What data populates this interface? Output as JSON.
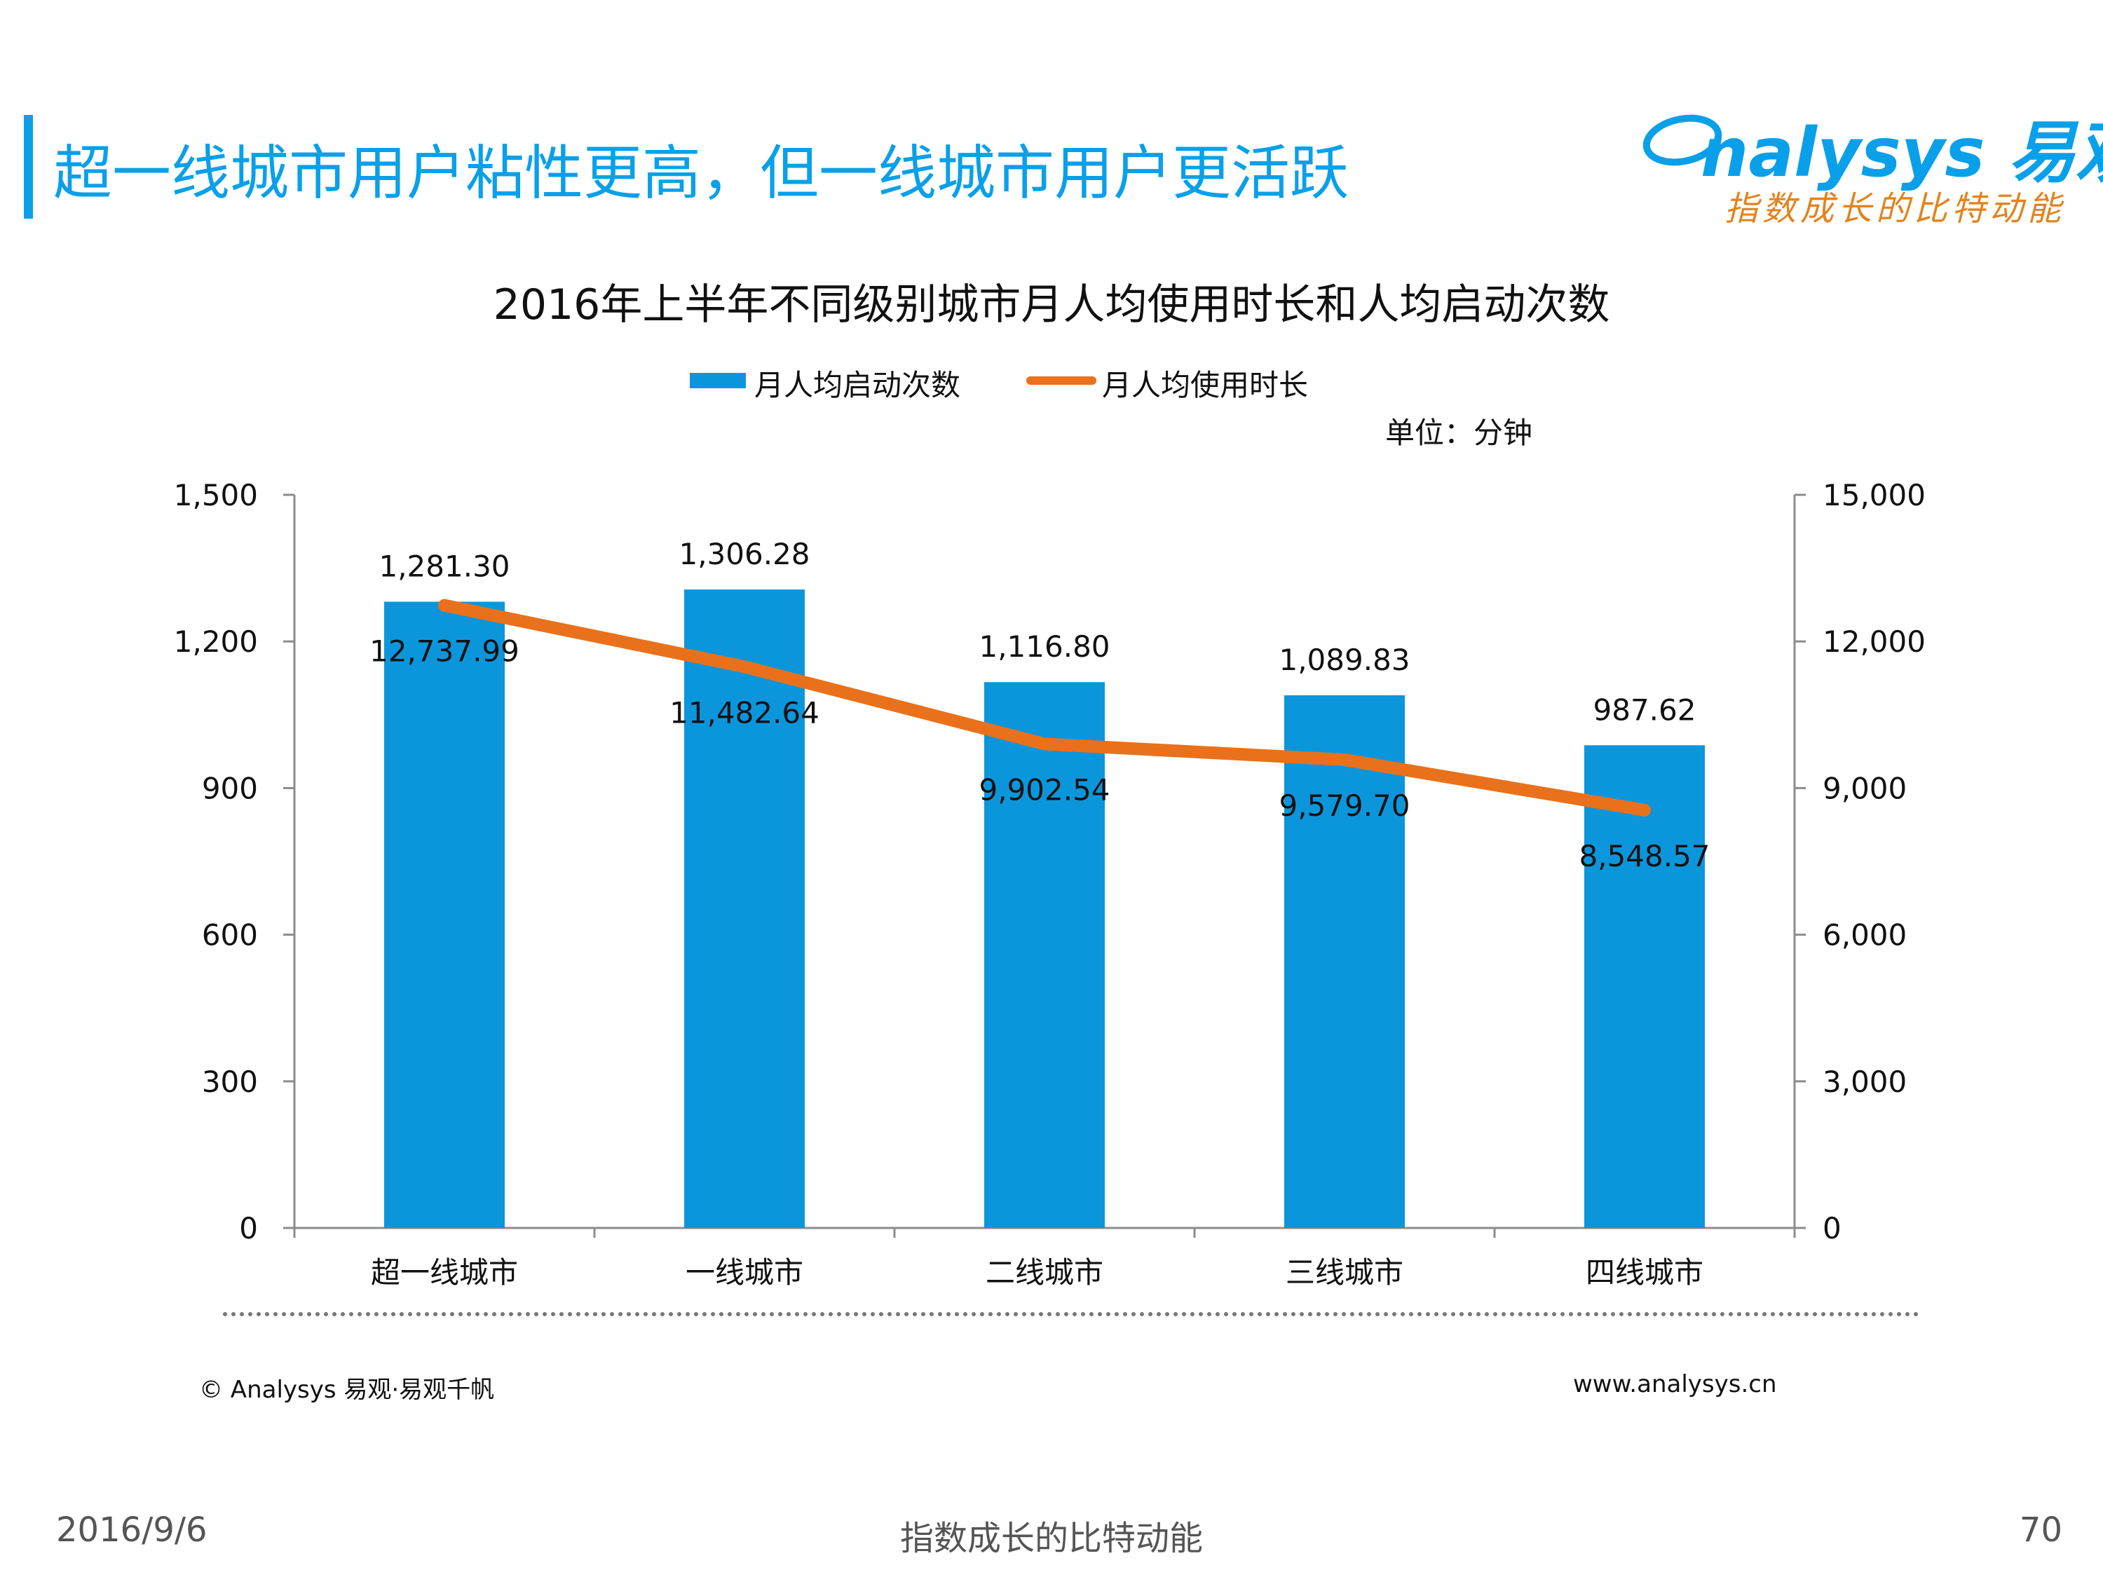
{
  "header": {
    "title": "超一线城市用户粘性更高，但一线城市用户更活跃",
    "logo_text": "nalysys 易观",
    "logo_slogan": "指数成长的比特动能",
    "accent_color": "#0aa0e9"
  },
  "unit_label": "单位：分钟",
  "chart_data": {
    "type": "bar",
    "title": "2016年上半年不同级别城市月人均使用时长和人均启动次数",
    "categories": [
      "超一线城市",
      "一线城市",
      "二线城市",
      "三线城市",
      "四线城市"
    ],
    "series": [
      {
        "name": "月人均启动次数",
        "type": "bar",
        "axis": "left",
        "color": "#0b96dc",
        "values": [
          1281.3,
          1306.28,
          1116.8,
          1089.83,
          987.62
        ],
        "labels": [
          "1,281.30",
          "1,306.28",
          "1,116.80",
          "1,089.83",
          "987.62"
        ]
      },
      {
        "name": "月人均使用时长",
        "type": "line",
        "axis": "right",
        "color": "#e9711b",
        "values": [
          12737.99,
          11482.64,
          9902.54,
          9579.7,
          8548.57
        ],
        "labels": [
          "12,737.99",
          "11,482.64",
          "9,902.54",
          "9,579.70",
          "8,548.57"
        ]
      }
    ],
    "y_left": {
      "ylim": [
        0,
        1500
      ],
      "ticks": [
        "0",
        "300",
        "600",
        "900",
        "1,200",
        "1,500"
      ]
    },
    "y_right": {
      "ylim": [
        0,
        15000
      ],
      "ticks": [
        "0",
        "3,000",
        "6,000",
        "9,000",
        "12,000",
        "15,000"
      ]
    },
    "legend": "top",
    "grid": false
  },
  "footer": {
    "copyright": "© Analysys 易观·易观千帆",
    "website": "www.analysys.cn",
    "date": "2016/9/6",
    "slogan": "指数成长的比特动能",
    "page": "70"
  }
}
